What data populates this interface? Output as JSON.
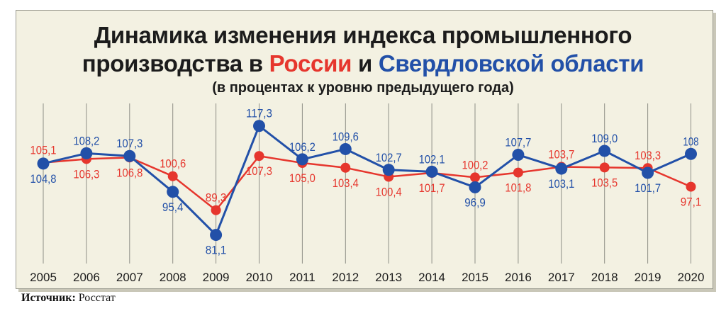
{
  "header": {
    "title_line1": "Динамика изменения индекса промышленного",
    "title_line2_prefix": "производства в",
    "title_russia": "России",
    "title_and": "и",
    "title_region": "Свердловской области",
    "subtitle": "(в процентах к уровню предыдущего года)"
  },
  "source": {
    "label": "Источник:",
    "value": "Росстат"
  },
  "colors": {
    "russia": "#e6362d",
    "sverdlovsk": "#2250a8",
    "background": "#f3f1e2"
  },
  "chart_data": {
    "type": "line",
    "x": [
      "2005",
      "2006",
      "2007",
      "2008",
      "2009",
      "2010",
      "2011",
      "2012",
      "2013",
      "2014",
      "2015",
      "2016",
      "2017",
      "2018",
      "2019",
      "2020"
    ],
    "series": [
      {
        "name": "России",
        "color": "#e6362d",
        "values": [
          105.1,
          106.3,
          106.8,
          100.6,
          89.3,
          107.3,
          105.0,
          103.4,
          100.4,
          101.7,
          100.2,
          101.8,
          103.7,
          103.5,
          103.3,
          97.1
        ],
        "labels": [
          "105,1",
          "106,3",
          "106,8",
          "100,6",
          "89,3",
          "107,3",
          "105,0",
          "103,4",
          "100,4",
          "101,7",
          "100,2",
          "101,8",
          "103,7",
          "103,5",
          "103,3",
          "97,1"
        ]
      },
      {
        "name": "Свердловской области",
        "color": "#2250a8",
        "values": [
          104.8,
          108.2,
          107.3,
          95.4,
          81.1,
          117.3,
          106.2,
          109.6,
          102.7,
          102.1,
          96.9,
          107.7,
          103.1,
          109.0,
          101.7,
          108
        ],
        "labels": [
          "104,8",
          "108,2",
          "107,3",
          "95,4",
          "81,1",
          "117,3",
          "106,2",
          "109,6",
          "102,7",
          "102,1",
          "96,9",
          "107,7",
          "103,1",
          "109,0",
          "101,7",
          "108"
        ]
      }
    ],
    "grid": "vertical",
    "legend": "none"
  }
}
